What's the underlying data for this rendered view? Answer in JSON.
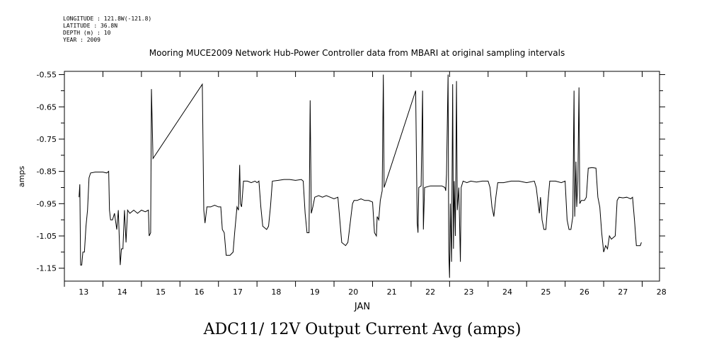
{
  "meta": {
    "longitude": "LONGITUDE : 121.8W(-121.8)",
    "latitude": "LATITUDE : 36.8N",
    "depth": "DEPTH (m) : 10",
    "year": "YEAR : 2009"
  },
  "title": "Mooring MUCE2009 Network Hub-Power Controller data from MBARI at original sampling intervals",
  "bottom_title": "ADC11/ 12V Output Current Avg (amps)",
  "chart_data": {
    "type": "line",
    "title": "Mooring MUCE2009 Network Hub-Power Controller data from MBARI at original sampling intervals",
    "xlabel": "JAN",
    "ylabel": "amps",
    "xlim": [
      13.0,
      28.45
    ],
    "ylim": [
      -1.19,
      -0.54
    ],
    "x_ticks": [
      "13",
      "14",
      "15",
      "16",
      "17",
      "18",
      "19",
      "20",
      "21",
      "22",
      "23",
      "24",
      "25",
      "26",
      "27",
      "28"
    ],
    "y_ticks": [
      "-0.55",
      "-0.65",
      "-0.75",
      "-0.85",
      "-0.95",
      "-1.05",
      "-1.15"
    ],
    "grid": false,
    "series": [
      {
        "values": [
          [
            13.38,
            -0.93
          ],
          [
            13.4,
            -0.89
          ],
          [
            13.42,
            -1.14
          ],
          [
            13.45,
            -1.14
          ],
          [
            13.48,
            -1.1
          ],
          [
            13.52,
            -1.1
          ],
          [
            13.56,
            -1.02
          ],
          [
            13.6,
            -0.97
          ],
          [
            13.64,
            -0.87
          ],
          [
            13.68,
            -0.855
          ],
          [
            13.8,
            -0.852
          ],
          [
            14.0,
            -0.852
          ],
          [
            14.1,
            -0.855
          ],
          [
            14.15,
            -0.85
          ],
          [
            14.17,
            -0.97
          ],
          [
            14.2,
            -1.0
          ],
          [
            14.25,
            -1.0
          ],
          [
            14.3,
            -0.98
          ],
          [
            14.36,
            -1.03
          ],
          [
            14.4,
            -0.97
          ],
          [
            14.45,
            -1.14
          ],
          [
            14.48,
            -1.09
          ],
          [
            14.52,
            -1.09
          ],
          [
            14.56,
            -0.97
          ],
          [
            14.6,
            -1.07
          ],
          [
            14.64,
            -0.97
          ],
          [
            14.7,
            -0.98
          ],
          [
            14.8,
            -0.97
          ],
          [
            14.9,
            -0.98
          ],
          [
            15.0,
            -0.97
          ],
          [
            15.1,
            -0.975
          ],
          [
            15.18,
            -0.97
          ],
          [
            15.2,
            -1.05
          ],
          [
            15.24,
            -1.04
          ],
          [
            15.26,
            -0.595
          ],
          [
            15.28,
            -0.7
          ],
          [
            15.3,
            -0.81
          ],
          [
            16.58,
            -0.58
          ],
          [
            16.62,
            -0.97
          ],
          [
            16.65,
            -1.01
          ],
          [
            16.7,
            -0.96
          ],
          [
            16.8,
            -0.96
          ],
          [
            16.9,
            -0.955
          ],
          [
            17.0,
            -0.96
          ],
          [
            17.06,
            -0.96
          ],
          [
            17.1,
            -1.03
          ],
          [
            17.15,
            -1.04
          ],
          [
            17.2,
            -1.11
          ],
          [
            17.3,
            -1.11
          ],
          [
            17.38,
            -1.1
          ],
          [
            17.42,
            -1.04
          ],
          [
            17.48,
            -0.96
          ],
          [
            17.52,
            -0.97
          ],
          [
            17.55,
            -0.83
          ],
          [
            17.57,
            -0.95
          ],
          [
            17.6,
            -0.96
          ],
          [
            17.65,
            -0.88
          ],
          [
            17.75,
            -0.88
          ],
          [
            17.85,
            -0.885
          ],
          [
            17.95,
            -0.88
          ],
          [
            18.0,
            -0.885
          ],
          [
            18.05,
            -0.88
          ],
          [
            18.1,
            -0.96
          ],
          [
            18.15,
            -1.02
          ],
          [
            18.25,
            -1.03
          ],
          [
            18.3,
            -1.02
          ],
          [
            18.35,
            -0.96
          ],
          [
            18.4,
            -0.88
          ],
          [
            18.55,
            -0.878
          ],
          [
            18.7,
            -0.875
          ],
          [
            18.85,
            -0.875
          ],
          [
            19.0,
            -0.878
          ],
          [
            19.15,
            -0.875
          ],
          [
            19.2,
            -0.88
          ],
          [
            19.25,
            -0.98
          ],
          [
            19.3,
            -1.04
          ],
          [
            19.35,
            -1.04
          ],
          [
            19.38,
            -0.63
          ],
          [
            19.41,
            -0.98
          ],
          [
            19.45,
            -0.96
          ],
          [
            19.5,
            -0.93
          ],
          [
            19.6,
            -0.925
          ],
          [
            19.7,
            -0.93
          ],
          [
            19.8,
            -0.925
          ],
          [
            19.9,
            -0.93
          ],
          [
            20.0,
            -0.935
          ],
          [
            20.1,
            -0.93
          ],
          [
            20.15,
            -1.0
          ],
          [
            20.2,
            -1.07
          ],
          [
            20.3,
            -1.08
          ],
          [
            20.36,
            -1.07
          ],
          [
            20.4,
            -1.03
          ],
          [
            20.45,
            -0.98
          ],
          [
            20.48,
            -0.95
          ],
          [
            20.52,
            -0.94
          ],
          [
            20.6,
            -0.94
          ],
          [
            20.7,
            -0.935
          ],
          [
            20.8,
            -0.94
          ],
          [
            20.9,
            -0.94
          ],
          [
            21.0,
            -0.945
          ],
          [
            21.05,
            -1.04
          ],
          [
            21.1,
            -1.05
          ],
          [
            21.12,
            -0.99
          ],
          [
            21.16,
            -1.0
          ],
          [
            21.2,
            -0.94
          ],
          [
            21.25,
            -0.91
          ],
          [
            21.28,
            -0.55
          ],
          [
            21.3,
            -0.9
          ],
          [
            22.12,
            -0.6
          ],
          [
            22.16,
            -1.01
          ],
          [
            22.18,
            -1.04
          ],
          [
            22.2,
            -0.9
          ],
          [
            22.26,
            -0.895
          ],
          [
            22.3,
            -0.6
          ],
          [
            22.32,
            -1.03
          ],
          [
            22.35,
            -0.9
          ],
          [
            22.5,
            -0.895
          ],
          [
            22.65,
            -0.895
          ],
          [
            22.8,
            -0.895
          ],
          [
            22.88,
            -0.9
          ],
          [
            22.9,
            -0.91
          ],
          [
            22.92,
            -0.86
          ],
          [
            22.96,
            -0.55
          ],
          [
            22.98,
            -1.1
          ],
          [
            23.0,
            -1.18
          ],
          [
            23.02,
            -0.95
          ],
          [
            23.05,
            -1.13
          ],
          [
            23.08,
            -0.58
          ],
          [
            23.1,
            -1.09
          ],
          [
            23.12,
            -0.88
          ],
          [
            23.15,
            -1.05
          ],
          [
            23.18,
            -0.57
          ],
          [
            23.2,
            -0.97
          ],
          [
            23.24,
            -0.9
          ],
          [
            23.28,
            -1.13
          ],
          [
            23.3,
            -0.9
          ],
          [
            23.35,
            -0.88
          ],
          [
            23.45,
            -0.885
          ],
          [
            23.55,
            -0.88
          ],
          [
            23.7,
            -0.883
          ],
          [
            23.85,
            -0.88
          ],
          [
            24.0,
            -0.88
          ],
          [
            24.05,
            -0.9
          ],
          [
            24.1,
            -0.96
          ],
          [
            24.15,
            -0.99
          ],
          [
            24.2,
            -0.93
          ],
          [
            24.25,
            -0.885
          ],
          [
            24.4,
            -0.885
          ],
          [
            24.6,
            -0.88
          ],
          [
            24.8,
            -0.88
          ],
          [
            25.0,
            -0.885
          ],
          [
            25.2,
            -0.88
          ],
          [
            25.25,
            -0.9
          ],
          [
            25.3,
            -0.95
          ],
          [
            25.33,
            -0.98
          ],
          [
            25.36,
            -0.93
          ],
          [
            25.4,
            -1.0
          ],
          [
            25.45,
            -1.03
          ],
          [
            25.5,
            -1.03
          ],
          [
            25.55,
            -0.95
          ],
          [
            25.6,
            -0.88
          ],
          [
            25.75,
            -0.88
          ],
          [
            25.9,
            -0.885
          ],
          [
            26.0,
            -0.88
          ],
          [
            26.05,
            -1.0
          ],
          [
            26.1,
            -1.03
          ],
          [
            26.15,
            -1.03
          ],
          [
            26.2,
            -0.99
          ],
          [
            26.23,
            -0.6
          ],
          [
            26.25,
            -0.99
          ],
          [
            26.28,
            -0.82
          ],
          [
            26.3,
            -0.96
          ],
          [
            26.33,
            -0.88
          ],
          [
            26.36,
            -0.59
          ],
          [
            26.38,
            -0.95
          ],
          [
            26.42,
            -0.94
          ],
          [
            26.5,
            -0.94
          ],
          [
            26.55,
            -0.93
          ],
          [
            26.6,
            -0.84
          ],
          [
            26.7,
            -0.838
          ],
          [
            26.8,
            -0.84
          ],
          [
            26.85,
            -0.93
          ],
          [
            26.9,
            -0.96
          ],
          [
            26.95,
            -1.04
          ],
          [
            27.0,
            -1.1
          ],
          [
            27.05,
            -1.08
          ],
          [
            27.1,
            -1.09
          ],
          [
            27.15,
            -1.05
          ],
          [
            27.2,
            -1.06
          ],
          [
            27.3,
            -1.05
          ],
          [
            27.35,
            -0.94
          ],
          [
            27.4,
            -0.93
          ],
          [
            27.5,
            -0.932
          ],
          [
            27.6,
            -0.93
          ],
          [
            27.7,
            -0.935
          ],
          [
            27.75,
            -0.93
          ],
          [
            27.8,
            -1.0
          ],
          [
            27.85,
            -1.08
          ],
          [
            27.95,
            -1.08
          ],
          [
            27.98,
            -1.07
          ]
        ]
      }
    ]
  }
}
